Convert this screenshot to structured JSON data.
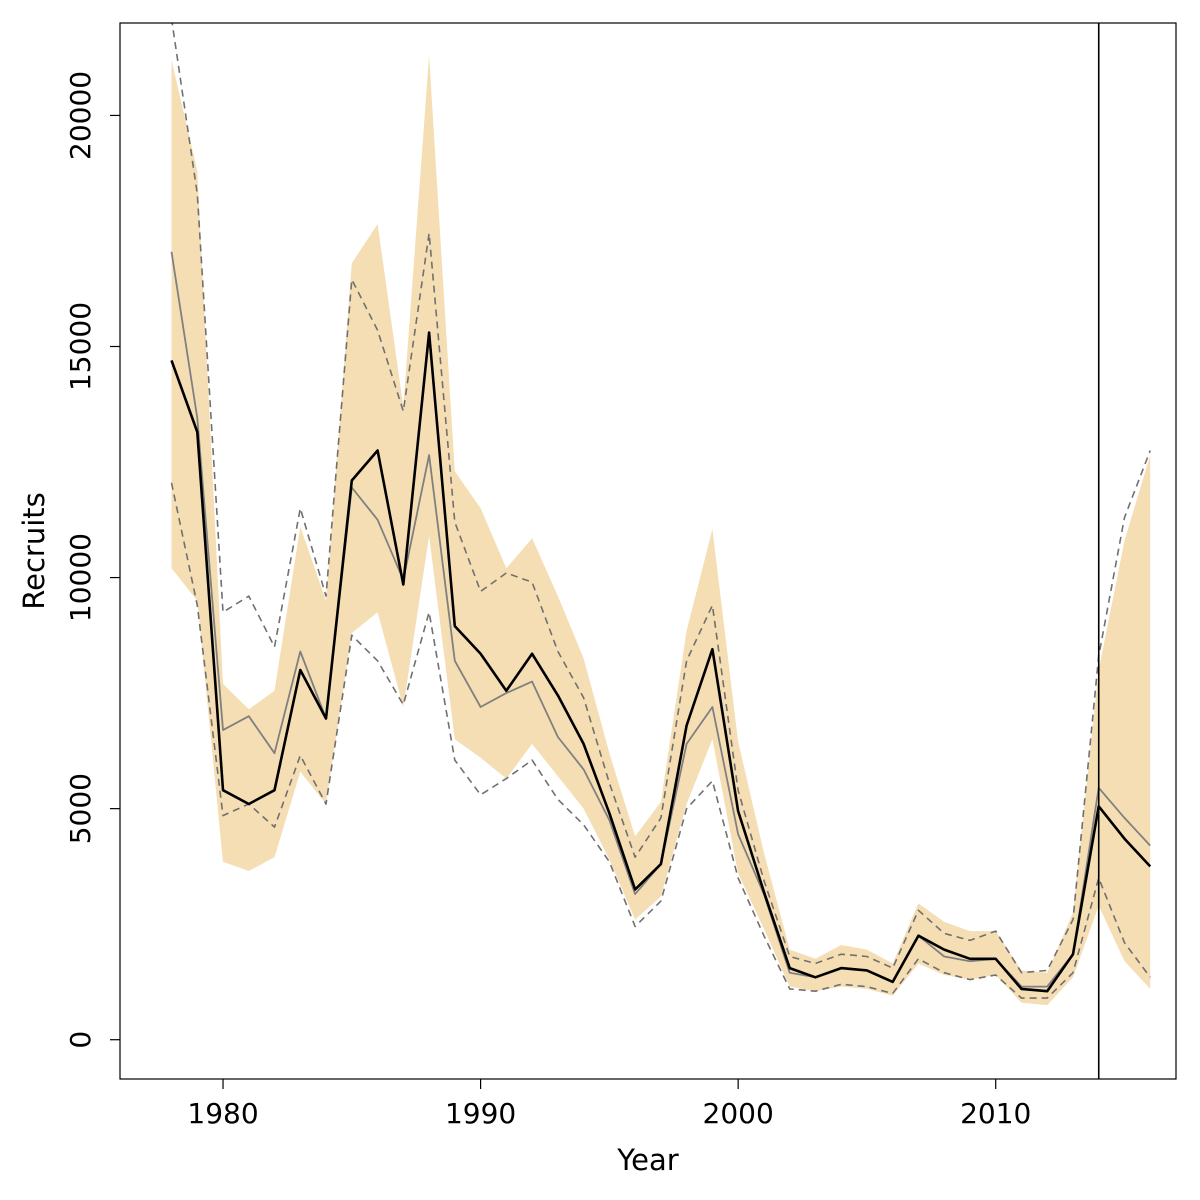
{
  "chart_data": {
    "type": "line",
    "xlabel": "Year",
    "ylabel": "Recruits",
    "xlim": [
      1976,
      2017
    ],
    "ylim": [
      -850,
      22000
    ],
    "xticks": [
      1980,
      1990,
      2000,
      2010
    ],
    "yticks": [
      0,
      5000,
      10000,
      15000,
      20000
    ],
    "x_tick_labels": [
      "1980",
      "1990",
      "2000",
      "2010"
    ],
    "y_tick_labels": [
      "0",
      "5000",
      "10000",
      "15000",
      "20000"
    ],
    "vline_x": 2014,
    "x": [
      1978,
      1979,
      1980,
      1981,
      1982,
      1983,
      1984,
      1985,
      1986,
      1987,
      1988,
      1989,
      1990,
      1991,
      1992,
      1993,
      1994,
      1995,
      1996,
      1997,
      1998,
      1999,
      2000,
      2001,
      2002,
      2003,
      2004,
      2005,
      2006,
      2007,
      2008,
      2009,
      2010,
      2011,
      2012,
      2013,
      2014,
      2015,
      2016
    ],
    "series": [
      {
        "role": "band",
        "lower": [
          10200,
          9500,
          3850,
          3650,
          3950,
          5800,
          5100,
          8800,
          9250,
          7200,
          10900,
          6500,
          6100,
          5650,
          6400,
          5700,
          5000,
          3900,
          2600,
          3100,
          5100,
          6500,
          3600,
          2400,
          1150,
          1050,
          1150,
          1100,
          950,
          1650,
          1400,
          1300,
          1400,
          800,
          750,
          1350,
          2900,
          1700,
          1100
        ],
        "upper": [
          21200,
          18800,
          7700,
          7150,
          7550,
          11100,
          9500,
          16800,
          17650,
          13700,
          21300,
          12300,
          11500,
          10200,
          10850,
          9600,
          8250,
          6200,
          4400,
          5150,
          8850,
          11050,
          6450,
          4050,
          1950,
          1750,
          2050,
          1950,
          1650,
          2950,
          2550,
          2350,
          2350,
          1500,
          1450,
          2750,
          8000,
          10800,
          12650
        ]
      },
      {
        "role": "dashed-upper",
        "values": [
          22100,
          18300,
          9250,
          9600,
          8500,
          11500,
          9600,
          16450,
          15350,
          13600,
          17450,
          11200,
          9700,
          10100,
          9900,
          8400,
          7400,
          5550,
          3950,
          4800,
          8200,
          9400,
          5400,
          3450,
          1800,
          1650,
          1850,
          1800,
          1550,
          2800,
          2300,
          2150,
          2350,
          1450,
          1500,
          2600,
          8300,
          11300,
          12750
        ]
      },
      {
        "role": "dashed-lower",
        "values": [
          12050,
          9400,
          4850,
          5100,
          4600,
          6150,
          5100,
          8750,
          8200,
          7250,
          9250,
          6050,
          5300,
          5650,
          6050,
          5200,
          4650,
          3850,
          2450,
          3000,
          5000,
          5600,
          3500,
          2250,
          1100,
          1050,
          1200,
          1150,
          1000,
          1750,
          1450,
          1300,
          1400,
          900,
          900,
          1450,
          3500,
          2100,
          1350
        ]
      },
      {
        "role": "grey-line",
        "values": [
          17050,
          13450,
          6700,
          7000,
          6200,
          8400,
          6950,
          11950,
          11250,
          9950,
          12650,
          8200,
          7200,
          7500,
          7750,
          6550,
          5850,
          4750,
          3150,
          3800,
          6400,
          7200,
          4450,
          3150,
          1450,
          1350,
          1550,
          1500,
          1250,
          2250,
          1800,
          1700,
          1750,
          1150,
          1150,
          1850,
          5450,
          4800,
          4200
        ]
      },
      {
        "role": "main-line",
        "values": [
          14700,
          13150,
          5400,
          5100,
          5400,
          8000,
          6950,
          12100,
          12750,
          9850,
          15300,
          8950,
          8350,
          7550,
          8350,
          7450,
          6400,
          4900,
          3250,
          3800,
          6800,
          8450,
          4950,
          3200,
          1550,
          1350,
          1550,
          1500,
          1250,
          2250,
          1950,
          1750,
          1750,
          1100,
          1050,
          1850,
          5050,
          4350,
          3750
        ]
      }
    ],
    "colors": {
      "band": "#f5deb3",
      "dashed": "#707070",
      "grey_line": "#808080",
      "main_line": "#000000",
      "axis": "#000000"
    }
  }
}
